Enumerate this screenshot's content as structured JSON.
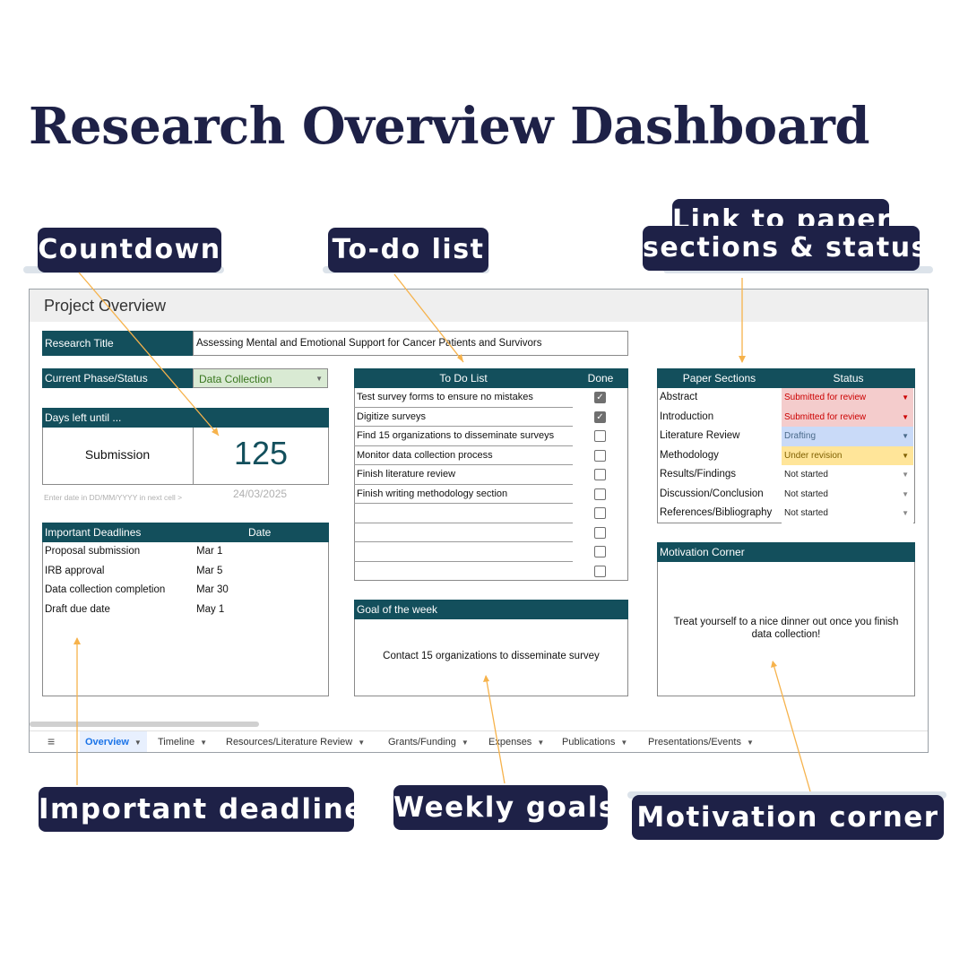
{
  "title": "Research Overview Dashboard",
  "callouts": {
    "countdown": "Countdown",
    "todo": "To-do list",
    "link_sections_line1": "Link to paper",
    "link_sections_line2": "sections & status",
    "deadlines": "Important deadlines",
    "weekly": "Weekly goals",
    "motivation": "Motivation corner"
  },
  "sheet": {
    "header": "Project Overview",
    "research_title_label": "Research Title",
    "research_title_value": "Assessing Mental and Emotional Support for Cancer Patients and Survivors",
    "phase_label": "Current Phase/Status",
    "phase_value": "Data Collection",
    "days_left_label": "Days left until ...",
    "days_left_event": "Submission",
    "days_left_value": "125",
    "date_hint": "Enter date in DD/MM/YYYY in next cell >",
    "date_value": "24/03/2025",
    "deadlines": {
      "header_name": "Important Deadlines",
      "header_date": "Date",
      "rows": [
        {
          "name": "Proposal submission",
          "date": "Mar 1"
        },
        {
          "name": "IRB approval",
          "date": "Mar 5"
        },
        {
          "name": "Data collection completion",
          "date": "Mar 30"
        },
        {
          "name": "Draft due date",
          "date": "May 1"
        }
      ]
    },
    "todo": {
      "header_task": "To Do List",
      "header_done": "Done",
      "rows": [
        {
          "task": "Test survey forms to ensure no mistakes",
          "done": true
        },
        {
          "task": "Digitize surveys",
          "done": true
        },
        {
          "task": "Find 15 organizations to disseminate surveys",
          "done": false
        },
        {
          "task": "Monitor data collection process",
          "done": false
        },
        {
          "task": "Finish literature review",
          "done": false
        },
        {
          "task": "Finish writing methodology section",
          "done": false
        },
        {
          "task": "",
          "done": false
        },
        {
          "task": "",
          "done": false
        },
        {
          "task": "",
          "done": false
        },
        {
          "task": "",
          "done": false
        }
      ]
    },
    "goal": {
      "header": "Goal of the week",
      "text": "Contact 15 organizations to disseminate survey"
    },
    "paper_sections": {
      "header_name": "Paper Sections",
      "header_status": "Status",
      "rows": [
        {
          "name": "Abstract",
          "status": "Submitted for review",
          "bg": "#f4cccc",
          "fg": "#cc0000"
        },
        {
          "name": "Introduction",
          "status": "Submitted for review",
          "bg": "#f4cccc",
          "fg": "#cc0000"
        },
        {
          "name": "Literature Review",
          "status": "Drafting",
          "bg": "#c9daf8",
          "fg": "#4a6a8a"
        },
        {
          "name": "Methodology",
          "status": "Under revision",
          "bg": "#ffe599",
          "fg": "#7f6000"
        },
        {
          "name": "Results/Findings",
          "status": "Not started",
          "bg": "#ffffff",
          "fg": "#222222"
        },
        {
          "name": "Discussion/Conclusion",
          "status": "Not started",
          "bg": "#ffffff",
          "fg": "#222222"
        },
        {
          "name": "References/Bibliography",
          "status": "Not started",
          "bg": "#ffffff",
          "fg": "#222222"
        }
      ]
    },
    "motivation": {
      "header": "Motivation Corner",
      "text": "Treat yourself to a nice dinner out once you finish data collection!"
    },
    "tabs": [
      {
        "label": "Overview",
        "active": true
      },
      {
        "label": "Timeline",
        "active": false
      },
      {
        "label": "Resources/Literature Review",
        "active": false
      },
      {
        "label": "Grants/Funding",
        "active": false
      },
      {
        "label": "Expenses",
        "active": false
      },
      {
        "label": "Publications",
        "active": false
      },
      {
        "label": "Presentations/Events",
        "active": false
      }
    ]
  },
  "colors": {
    "navy": "#1e2147",
    "teal_header": "#134f5c",
    "arrow": "#f6b24b",
    "phase_bg": "#d9ead3"
  }
}
